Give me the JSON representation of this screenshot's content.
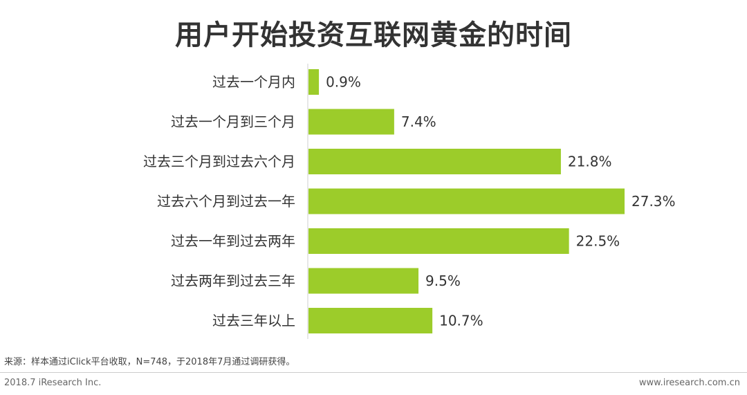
{
  "chart_data": {
    "type": "bar",
    "orientation": "horizontal",
    "title": "用户开始投资互联网黄金的时间",
    "categories": [
      "过去一个月内",
      "过去一个月到三个月",
      "过去三个月到过去六个月",
      "过去六个月到过去一年",
      "过去一年到过去两年",
      "过去两年到过去三年",
      "过去三年以上"
    ],
    "values": [
      0.9,
      7.4,
      21.8,
      27.3,
      22.5,
      9.5,
      10.7
    ],
    "value_labels": [
      "0.9%",
      "7.4%",
      "21.8%",
      "27.3%",
      "22.5%",
      "9.5%",
      "10.7%"
    ],
    "unit": "%",
    "xlim": [
      0,
      27.3
    ],
    "grid": false,
    "legend": "none",
    "bar_color": "#9ccc2a"
  },
  "source_note": "来源：样本通过iClick平台收取，N=748，于2018年7月通过调研获得。",
  "footer": {
    "left": "2018.7 iResearch Inc.",
    "right": "www.iresearch.com.cn"
  }
}
